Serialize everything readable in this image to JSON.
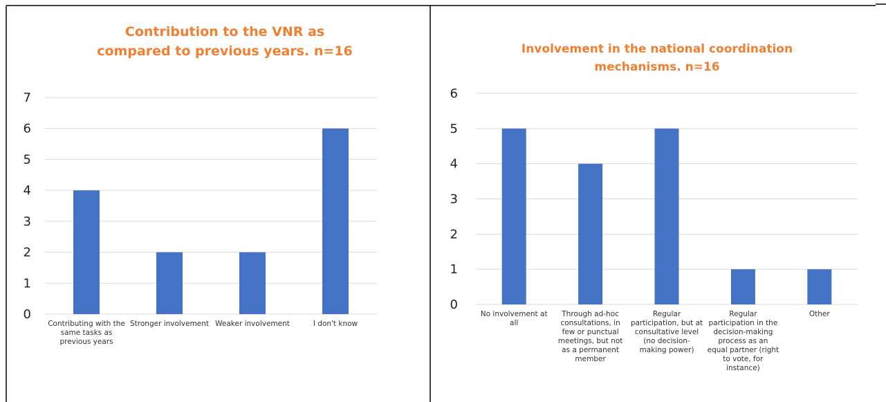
{
  "chart_data": [
    {
      "type": "bar",
      "title": [
        "Contribution to the VNR as",
        "compared to previous years. n=16"
      ],
      "categories": [
        "Contributing with the same tasks as previous years",
        "Stronger involvement",
        "Weaker involvement",
        "I don't know"
      ],
      "values": [
        4,
        2,
        2,
        6
      ],
      "color": "#4472c4",
      "ylim": [
        0,
        7
      ],
      "yticks": [
        0,
        1,
        2,
        3,
        4,
        5,
        6,
        7
      ],
      "grid": true
    },
    {
      "type": "bar",
      "title": [
        "Involvement in the national coordination",
        "mechanisms. n=16"
      ],
      "categories": [
        "No involvement at all",
        "Through ad-hoc consultations, in few or punctual meetings, but not as a permanent member",
        "Regular participation, but at consultative level (no decision-making power)",
        "Regular participation in the decision-making process as an equal partner (right to vote, for instance)",
        "Other"
      ],
      "values": [
        5,
        4,
        5,
        1,
        1
      ],
      "color": "#4472c4",
      "ylim": [
        0,
        6
      ],
      "yticks": [
        0,
        1,
        2,
        3,
        4,
        5,
        6
      ],
      "grid": true
    }
  ]
}
